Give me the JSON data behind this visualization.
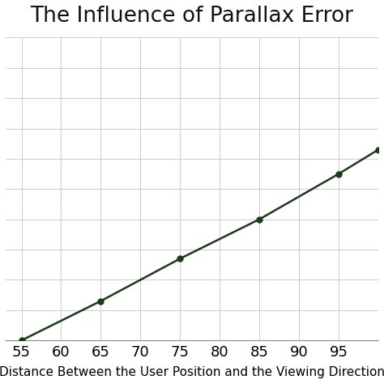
{
  "title": "The Influence of Parallax Error",
  "xlabel": "Distance Between the User Position and the Viewing Direction",
  "x": [
    55,
    65,
    75,
    85,
    95,
    100
  ],
  "y": [
    0.0,
    0.13,
    0.27,
    0.4,
    0.55,
    0.63
  ],
  "line_color": "#1a3a1a",
  "marker_color": "#1a3a1a",
  "marker_size": 5,
  "line_width": 1.8,
  "x_ticks": [
    55,
    60,
    65,
    70,
    75,
    80,
    85,
    90,
    95
  ],
  "xlim": [
    53,
    100
  ],
  "ylim": [
    0.0,
    1.0
  ],
  "y_ticks": [
    0.0,
    0.1,
    0.2,
    0.3,
    0.4,
    0.5,
    0.6,
    0.7,
    0.8,
    0.9,
    1.0
  ],
  "grid_color": "#cccccc",
  "background_color": "#ffffff",
  "title_fontsize": 19,
  "xlabel_fontsize": 11,
  "tick_fontsize": 13
}
